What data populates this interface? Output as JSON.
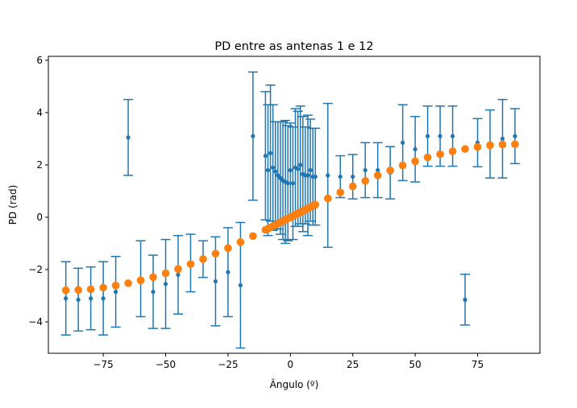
{
  "chart_data": {
    "type": "scatter",
    "title": "PD entre as antenas 1 e 12",
    "xlabel": "Ângulo (º)",
    "ylabel": "PD (rad)",
    "xlim": [
      -97,
      100
    ],
    "ylim": [
      -5.2,
      6.15
    ],
    "xticks": [
      -75,
      -50,
      -25,
      0,
      25,
      50,
      75
    ],
    "xtick_labels": [
      "−75",
      "−50",
      "−25",
      "0",
      "25",
      "50",
      "75"
    ],
    "yticks": [
      -4,
      -2,
      0,
      2,
      4,
      6
    ],
    "ytick_labels": [
      "−4",
      "−2",
      "0",
      "2",
      "4",
      "6"
    ],
    "grid": false,
    "colors": {
      "measured": "#1f77b4",
      "theoretical": "#ff7f0e"
    },
    "series": [
      {
        "marker": "small-dot-errorbar",
        "color": "#1f77b4",
        "points": [
          {
            "x": -90,
            "y": -3.1,
            "err": 1.4
          },
          {
            "x": -85,
            "y": -3.15,
            "err": 1.2
          },
          {
            "x": -80,
            "y": -3.1,
            "err": 1.2
          },
          {
            "x": -75,
            "y": -3.1,
            "err": 1.4
          },
          {
            "x": -70,
            "y": -2.85,
            "err": 1.35
          },
          {
            "x": -65,
            "y": 3.05,
            "err": 1.45
          },
          {
            "x": -60,
            "y": -2.35,
            "err": 1.45
          },
          {
            "x": -55,
            "y": -2.85,
            "err": 1.4
          },
          {
            "x": -50,
            "y": -2.55,
            "err": 1.7
          },
          {
            "x": -45,
            "y": -2.2,
            "err": 1.5
          },
          {
            "x": -40,
            "y": -1.75,
            "err": 1.1
          },
          {
            "x": -35,
            "y": -1.6,
            "err": 0.7
          },
          {
            "x": -30,
            "y": -2.45,
            "err": 1.7
          },
          {
            "x": -25,
            "y": -2.1,
            "err": 1.7
          },
          {
            "x": -20,
            "y": -2.6,
            "err": 2.4
          },
          {
            "x": -15,
            "y": 3.1,
            "err": 2.45
          },
          {
            "x": -10,
            "y": 2.35,
            "err": 2.45
          },
          {
            "x": -9,
            "y": 1.8,
            "err": 2.5
          },
          {
            "x": -8,
            "y": 2.45,
            "err": 2.6
          },
          {
            "x": -7,
            "y": 1.9,
            "err": 2.4
          },
          {
            "x": -6,
            "y": 1.75,
            "err": 1.9
          },
          {
            "x": -5,
            "y": 1.6,
            "err": 2.05
          },
          {
            "x": -4,
            "y": 1.5,
            "err": 2.15
          },
          {
            "x": -3,
            "y": 1.4,
            "err": 2.25
          },
          {
            "x": -2,
            "y": 1.35,
            "err": 2.35
          },
          {
            "x": -1,
            "y": 1.3,
            "err": 2.2
          },
          {
            "x": 0,
            "y": 1.8,
            "err": 1.8
          },
          {
            "x": 1,
            "y": 1.3,
            "err": 2.15
          },
          {
            "x": 2,
            "y": 1.9,
            "err": 2.25
          },
          {
            "x": 3,
            "y": 1.85,
            "err": 2.2
          },
          {
            "x": 4,
            "y": 2.0,
            "err": 2.25
          },
          {
            "x": 5,
            "y": 1.65,
            "err": 2.2
          },
          {
            "x": 6,
            "y": 1.6,
            "err": 1.85
          },
          {
            "x": 7,
            "y": 1.6,
            "err": 2.3
          },
          {
            "x": 8,
            "y": 1.8,
            "err": 1.95
          },
          {
            "x": 9,
            "y": 1.55,
            "err": 1.85
          },
          {
            "x": 10,
            "y": 1.55,
            "err": 1.85
          },
          {
            "x": 15,
            "y": 1.6,
            "err": 2.75
          },
          {
            "x": 20,
            "y": 1.55,
            "err": 0.8
          },
          {
            "x": 25,
            "y": 1.55,
            "err": 0.85
          },
          {
            "x": 30,
            "y": 1.8,
            "err": 1.05
          },
          {
            "x": 35,
            "y": 1.8,
            "err": 1.05
          },
          {
            "x": 40,
            "y": 1.7,
            "err": 1.0
          },
          {
            "x": 45,
            "y": 2.85,
            "err": 1.45
          },
          {
            "x": 50,
            "y": 2.6,
            "err": 1.25
          },
          {
            "x": 55,
            "y": 3.1,
            "err": 1.15
          },
          {
            "x": 60,
            "y": 3.1,
            "err": 1.15
          },
          {
            "x": 65,
            "y": 3.1,
            "err": 1.15
          },
          {
            "x": 70,
            "y": -3.15,
            "err": 0.97
          },
          {
            "x": 75,
            "y": 2.85,
            "err": 0.92
          },
          {
            "x": 80,
            "y": 2.8,
            "err": 1.3
          },
          {
            "x": 85,
            "y": 3.0,
            "err": 1.5
          },
          {
            "x": 90,
            "y": 3.1,
            "err": 1.05
          }
        ]
      },
      {
        "marker": "large-dot",
        "color": "#ff7f0e",
        "points": [
          {
            "x": -90,
            "y": -2.79
          },
          {
            "x": -85,
            "y": -2.78
          },
          {
            "x": -80,
            "y": -2.75
          },
          {
            "x": -75,
            "y": -2.69
          },
          {
            "x": -70,
            "y": -2.61
          },
          {
            "x": -65,
            "y": -2.52
          },
          {
            "x": -60,
            "y": -2.41
          },
          {
            "x": -55,
            "y": -2.29
          },
          {
            "x": -50,
            "y": -2.14
          },
          {
            "x": -45,
            "y": -1.98
          },
          {
            "x": -40,
            "y": -1.79
          },
          {
            "x": -35,
            "y": -1.6
          },
          {
            "x": -30,
            "y": -1.39
          },
          {
            "x": -25,
            "y": -1.18
          },
          {
            "x": -20,
            "y": -0.95
          },
          {
            "x": -15,
            "y": -0.72
          },
          {
            "x": -10,
            "y": -0.48
          },
          {
            "x": -9,
            "y": -0.44
          },
          {
            "x": -8,
            "y": -0.39
          },
          {
            "x": -7,
            "y": -0.34
          },
          {
            "x": -6,
            "y": -0.29
          },
          {
            "x": -5,
            "y": -0.24
          },
          {
            "x": -4,
            "y": -0.19
          },
          {
            "x": -3,
            "y": -0.15
          },
          {
            "x": -2,
            "y": -0.1
          },
          {
            "x": -1,
            "y": -0.05
          },
          {
            "x": 0,
            "y": 0.0
          },
          {
            "x": 1,
            "y": 0.05
          },
          {
            "x": 2,
            "y": 0.1
          },
          {
            "x": 3,
            "y": 0.15
          },
          {
            "x": 4,
            "y": 0.19
          },
          {
            "x": 5,
            "y": 0.24
          },
          {
            "x": 6,
            "y": 0.29
          },
          {
            "x": 7,
            "y": 0.34
          },
          {
            "x": 8,
            "y": 0.39
          },
          {
            "x": 9,
            "y": 0.44
          },
          {
            "x": 10,
            "y": 0.48
          },
          {
            "x": 15,
            "y": 0.72
          },
          {
            "x": 20,
            "y": 0.95
          },
          {
            "x": 25,
            "y": 1.18
          },
          {
            "x": 30,
            "y": 1.39
          },
          {
            "x": 35,
            "y": 1.6
          },
          {
            "x": 40,
            "y": 1.79
          },
          {
            "x": 45,
            "y": 1.98
          },
          {
            "x": 50,
            "y": 2.14
          },
          {
            "x": 55,
            "y": 2.29
          },
          {
            "x": 60,
            "y": 2.41
          },
          {
            "x": 65,
            "y": 2.52
          },
          {
            "x": 70,
            "y": 2.61
          },
          {
            "x": 75,
            "y": 2.69
          },
          {
            "x": 80,
            "y": 2.75
          },
          {
            "x": 85,
            "y": 2.78
          },
          {
            "x": 90,
            "y": 2.79
          }
        ]
      }
    ]
  }
}
